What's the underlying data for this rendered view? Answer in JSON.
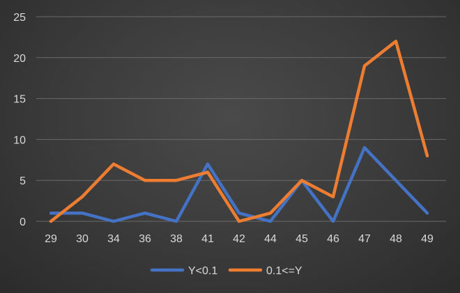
{
  "chart_data": {
    "type": "line",
    "categories": [
      "29",
      "30",
      "34",
      "36",
      "38",
      "41",
      "42",
      "44",
      "45",
      "46",
      "47",
      "48",
      "49"
    ],
    "series": [
      {
        "name": "Y<0.1",
        "color": "#4472c4",
        "values": [
          1,
          1,
          0,
          1,
          0,
          7,
          1,
          0,
          5,
          0,
          9,
          5,
          1
        ]
      },
      {
        "name": "0.1<=Y",
        "color": "#ed7d31",
        "values": [
          0,
          3,
          7,
          5,
          5,
          6,
          0,
          1,
          5,
          3,
          19,
          22,
          8
        ]
      }
    ],
    "ylim": [
      0,
      25
    ],
    "yticks": [
      "0",
      "5",
      "10",
      "15",
      "20",
      "25"
    ],
    "grid": true,
    "legend": "bottom",
    "title": "",
    "xlabel": "",
    "ylabel": ""
  }
}
